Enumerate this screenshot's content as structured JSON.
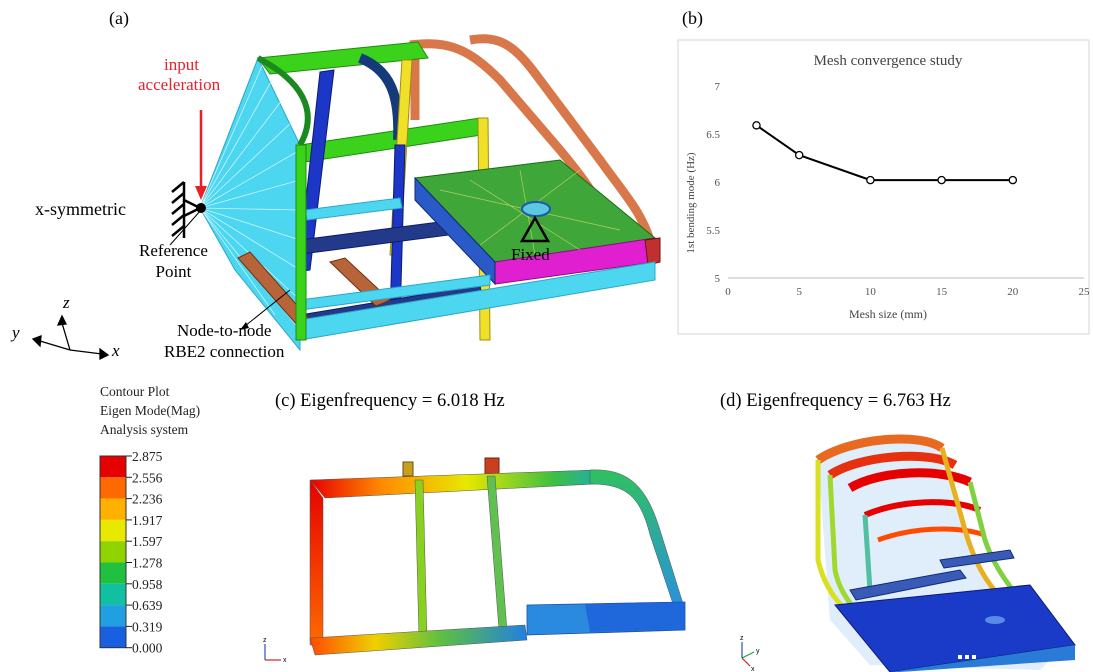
{
  "panels": {
    "a": {
      "label": "(a)",
      "input_label_line1": "input",
      "input_label_line2": "acceleration",
      "symmetric_label": "x-symmetric",
      "ref_line1": "Reference",
      "ref_line2": "Point",
      "fixed_label": "Fixed",
      "rbe_line1": "Node-to-node",
      "rbe_line2": "RBE2 connection",
      "axis_z": "z",
      "axis_y": "y",
      "axis_x": "x"
    },
    "b": {
      "label": "(b)"
    },
    "c": {
      "caption": "(c) Eigenfrequency = 6.018 Hz",
      "triad_z": "z",
      "triad_x": "x"
    },
    "d": {
      "caption": "(d) Eigenfrequency = 6.763 Hz",
      "triad_z": "z",
      "triad_x": "x",
      "triad_y": "y"
    }
  },
  "legend": {
    "title_line1": "Contour Plot",
    "title_line2": "Eigen Mode(Mag)",
    "title_line3": "Analysis system",
    "values": [
      "2.875",
      "2.556",
      "2.236",
      "1.917",
      "1.597",
      "1.278",
      "0.958",
      "0.639",
      "0.319",
      "0.000"
    ],
    "colors": [
      "#e60000",
      "#ff6a00",
      "#ffb000",
      "#e8e800",
      "#8fd400",
      "#20c040",
      "#10c0a0",
      "#20a0e0",
      "#1860e0",
      "#0000b0"
    ]
  },
  "chart_data": {
    "type": "line",
    "title": "Mesh convergence  study",
    "xlabel": "Mesh size (mm)",
    "ylabel": "1st bending mode (Hz)",
    "x": [
      2,
      5,
      10,
      15,
      20
    ],
    "y": [
      6.59,
      6.28,
      6.02,
      6.02,
      6.02
    ],
    "xlim": [
      0,
      25
    ],
    "ylim": [
      5,
      7
    ],
    "xticks": [
      "0",
      "5",
      "10",
      "15",
      "20",
      "25"
    ],
    "yticks": [
      "5",
      "5.5",
      "6",
      "6.5",
      "7"
    ],
    "xtick_values": [
      0,
      5,
      10,
      15,
      20,
      25
    ],
    "ytick_values": [
      5,
      5.5,
      6,
      6.5,
      7
    ],
    "grid": false,
    "line_color": "#000000",
    "marker": "open-circle"
  }
}
